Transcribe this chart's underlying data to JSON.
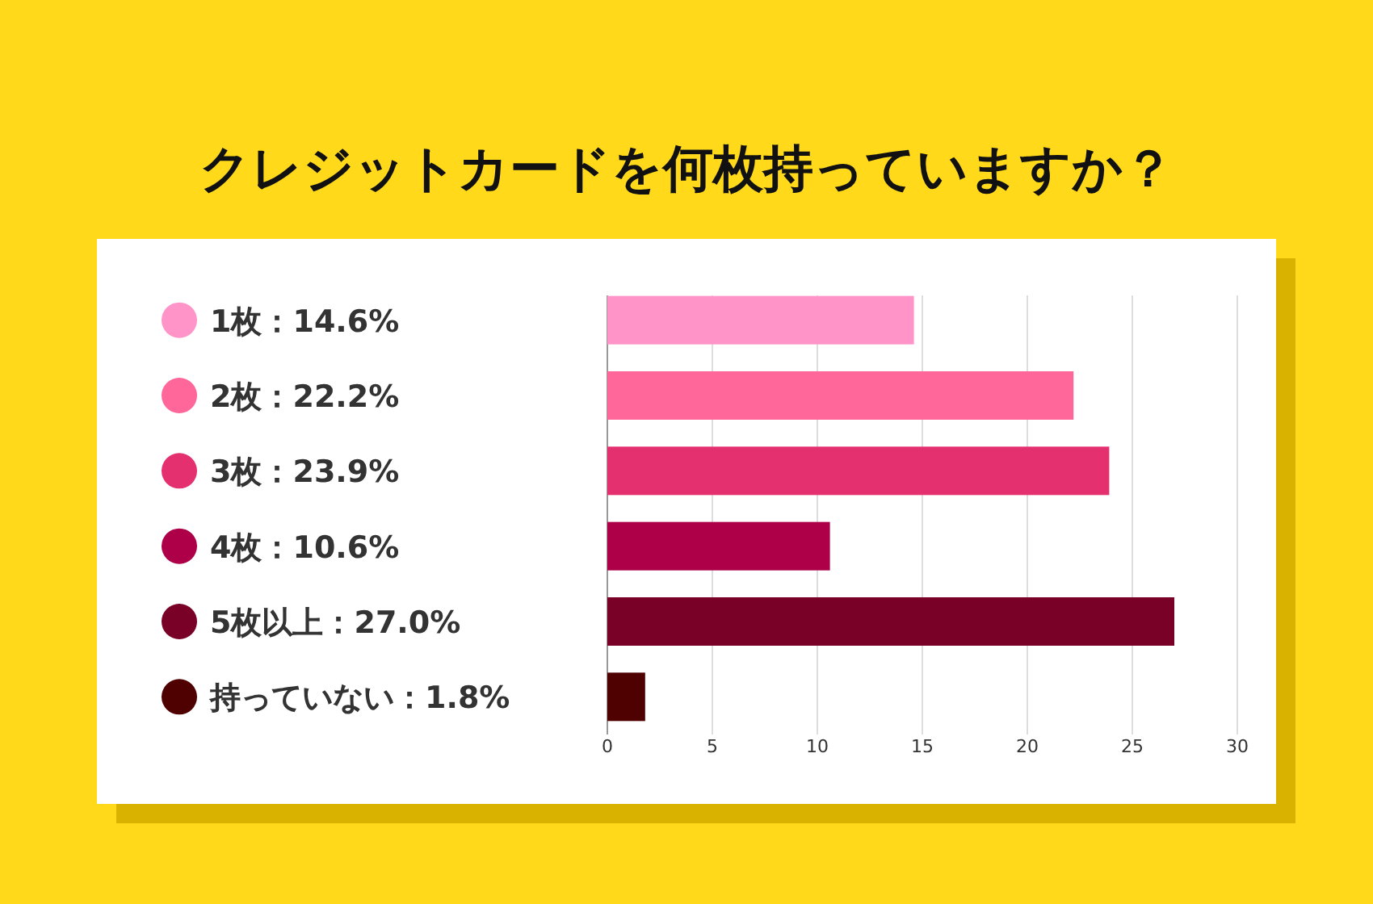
{
  "chart_data": {
    "type": "bar",
    "orientation": "horizontal",
    "title": "クレジットカードを何枚持っていますか？",
    "categories": [
      "1枚：14.6%",
      "2枚：22.2%",
      "3枚：23.9%",
      "4枚：10.6%",
      "5枚以上：27.0%",
      "持っていない：1.8%"
    ],
    "values": [
      14.6,
      22.2,
      23.9,
      10.6,
      27.0,
      1.8
    ],
    "colors": [
      "#ff94c8",
      "#ff6699",
      "#e4306f",
      "#ad0049",
      "#790027",
      "#4f0000"
    ],
    "xlim": [
      0,
      30
    ],
    "xticks": [
      0,
      5,
      10,
      15,
      20,
      25,
      30
    ],
    "grid": "x"
  }
}
